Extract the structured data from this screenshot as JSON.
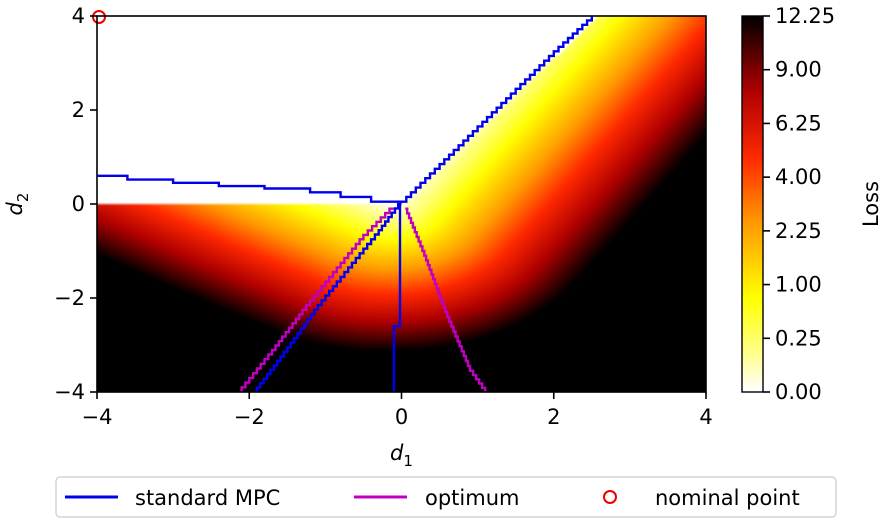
{
  "chart_data": {
    "type": "heatmap",
    "xlabel": "d",
    "xlabel_sub": "1",
    "ylabel": "d",
    "ylabel_sub": "2",
    "xlim": [
      -4,
      4
    ],
    "ylim": [
      -4,
      4
    ],
    "xticks": [
      -4,
      -2,
      0,
      2,
      4
    ],
    "xtick_labels": [
      "−4",
      "−2",
      "0",
      "2",
      "4"
    ],
    "yticks": [
      -4,
      -2,
      0,
      2,
      4
    ],
    "ytick_labels": [
      "−4",
      "−2",
      "0",
      "2",
      "4"
    ],
    "colormap": "hot_r",
    "colorbar": {
      "label": "Loss",
      "scale": "sqrt",
      "range": [
        0,
        12.25
      ],
      "ticks": [
        0.0,
        0.25,
        1.0,
        2.25,
        4.0,
        6.25,
        9.0,
        12.25
      ],
      "tick_labels": [
        "0.00",
        "0.25",
        "1.00",
        "2.25",
        "4.00",
        "6.25",
        "9.00",
        "12.25"
      ]
    },
    "series": [
      {
        "name": "standard MPC",
        "type": "line",
        "color": "#0000ee",
        "segments": [
          {
            "x": [
              -4.0,
              -3.6,
              -3.0,
              -2.4,
              -1.8,
              -1.2,
              -0.8,
              -0.4,
              0.0
            ],
            "y": [
              0.6,
              0.52,
              0.45,
              0.38,
              0.33,
              0.25,
              0.15,
              0.05,
              0.02
            ]
          },
          {
            "x": [
              0.0,
              0.5,
              1.0,
              1.5,
              2.0,
              2.5
            ],
            "y": [
              0.05,
              0.85,
              1.65,
              2.45,
              3.25,
              4.0
            ]
          },
          {
            "x": [
              0.0,
              -0.3,
              -0.7,
              -1.1,
              -1.5,
              -1.9
            ],
            "y": [
              0.0,
              -0.65,
              -1.45,
              -2.25,
              -3.15,
              -4.0
            ]
          },
          {
            "x": [
              -0.02,
              -0.02,
              -0.1,
              -0.1
            ],
            "y": [
              0.0,
              -2.6,
              -2.6,
              -4.0
            ]
          }
        ]
      },
      {
        "name": "optimum",
        "type": "line",
        "color": "#c000c0",
        "segments": [
          {
            "x": [
              -0.1,
              -0.5,
              -0.9,
              -1.3,
              -1.7,
              -2.1
            ],
            "y": [
              -0.1,
              -0.75,
              -1.55,
              -2.35,
              -3.2,
              -4.0
            ]
          },
          {
            "x": [
              0.05,
              0.3,
              0.6,
              0.9,
              1.1
            ],
            "y": [
              -0.1,
              -1.1,
              -2.4,
              -3.55,
              -4.0
            ]
          }
        ]
      },
      {
        "name": "nominal point",
        "type": "scatter",
        "marker": "open-circle",
        "color": "#ee0000",
        "x": [
          -4.0
        ],
        "y": [
          4.0
        ]
      }
    ],
    "legend": {
      "placement": "bottom-center",
      "entries": [
        "standard MPC",
        "optimum",
        "nominal point"
      ]
    }
  }
}
